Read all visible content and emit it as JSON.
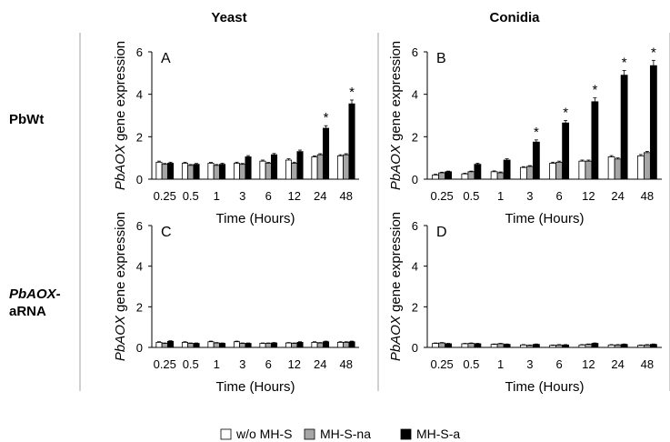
{
  "figure": {
    "col_titles": [
      "Yeast",
      "Conidia"
    ],
    "row_titles": [
      {
        "line1": "PbWt",
        "line1_italic": false,
        "line2": ""
      },
      {
        "line1": "PbAOX-",
        "line1_italic": true,
        "line2": "aRNA"
      }
    ],
    "ylabel_italic": "PbAOX",
    "ylabel_rest": " gene expression",
    "xlabel": "Time (Hours)"
  },
  "chart_data": [
    {
      "panel": "A",
      "type": "bar",
      "categories": [
        "0.25",
        "0.5",
        "1",
        "3",
        "6",
        "12",
        "24",
        "48"
      ],
      "ylim": [
        0,
        6
      ],
      "yticks": [
        0,
        2,
        4,
        6
      ],
      "series": [
        {
          "name": "w/o MH-S",
          "values": [
            0.8,
            0.75,
            0.75,
            0.75,
            0.85,
            0.9,
            1.05,
            1.1
          ],
          "errors": [
            0.05,
            0.04,
            0.04,
            0.05,
            0.05,
            0.06,
            0.05,
            0.05
          ]
        },
        {
          "name": "MH-S-na",
          "values": [
            0.7,
            0.65,
            0.65,
            0.7,
            0.75,
            0.75,
            1.15,
            1.15
          ],
          "errors": [
            0.04,
            0.04,
            0.04,
            0.04,
            0.04,
            0.05,
            0.05,
            0.05
          ]
        },
        {
          "name": "MH-S-a",
          "values": [
            0.75,
            0.7,
            0.7,
            1.05,
            1.15,
            1.3,
            2.4,
            3.55
          ],
          "errors": [
            0.05,
            0.04,
            0.05,
            0.06,
            0.06,
            0.07,
            0.12,
            0.18
          ]
        }
      ],
      "significant": [
        false,
        false,
        false,
        false,
        false,
        false,
        true,
        true
      ]
    },
    {
      "panel": "B",
      "type": "bar",
      "categories": [
        "0.25",
        "0.5",
        "1",
        "3",
        "6",
        "12",
        "24",
        "48"
      ],
      "ylim": [
        0,
        6
      ],
      "yticks": [
        0,
        2,
        4,
        6
      ],
      "series": [
        {
          "name": "w/o MH-S",
          "values": [
            0.2,
            0.25,
            0.35,
            0.55,
            0.75,
            0.85,
            1.05,
            1.1
          ],
          "errors": [
            0.03,
            0.03,
            0.04,
            0.04,
            0.05,
            0.05,
            0.06,
            0.06
          ]
        },
        {
          "name": "MH-S-na",
          "values": [
            0.3,
            0.35,
            0.3,
            0.6,
            0.8,
            0.85,
            0.95,
            1.25
          ],
          "errors": [
            0.03,
            0.03,
            0.04,
            0.04,
            0.05,
            0.05,
            0.05,
            0.06
          ]
        },
        {
          "name": "MH-S-a",
          "values": [
            0.35,
            0.7,
            0.9,
            1.75,
            2.65,
            3.65,
            4.9,
            5.35
          ],
          "errors": [
            0.03,
            0.05,
            0.06,
            0.1,
            0.12,
            0.18,
            0.22,
            0.25
          ]
        }
      ],
      "significant": [
        false,
        false,
        false,
        true,
        true,
        true,
        true,
        true
      ]
    },
    {
      "panel": "C",
      "type": "bar",
      "categories": [
        "0.25",
        "0.5",
        "1",
        "3",
        "6",
        "12",
        "24",
        "48"
      ],
      "ylim": [
        0,
        6
      ],
      "yticks": [
        0,
        2,
        4,
        6
      ],
      "series": [
        {
          "name": "w/o MH-S",
          "values": [
            0.25,
            0.25,
            0.28,
            0.28,
            0.2,
            0.22,
            0.25,
            0.25
          ],
          "errors": [
            0.03,
            0.03,
            0.03,
            0.03,
            0.02,
            0.02,
            0.03,
            0.03
          ]
        },
        {
          "name": "MH-S-na",
          "values": [
            0.2,
            0.2,
            0.22,
            0.2,
            0.2,
            0.2,
            0.22,
            0.25
          ],
          "errors": [
            0.02,
            0.02,
            0.02,
            0.02,
            0.02,
            0.02,
            0.02,
            0.03
          ]
        },
        {
          "name": "MH-S-a",
          "values": [
            0.3,
            0.2,
            0.2,
            0.2,
            0.22,
            0.25,
            0.28,
            0.28
          ],
          "errors": [
            0.03,
            0.02,
            0.02,
            0.02,
            0.02,
            0.03,
            0.03,
            0.03
          ]
        }
      ],
      "significant": [
        false,
        false,
        false,
        false,
        false,
        false,
        false,
        false
      ]
    },
    {
      "panel": "D",
      "type": "bar",
      "categories": [
        "0.25",
        "0.5",
        "1",
        "3",
        "6",
        "12",
        "24",
        "48"
      ],
      "ylim": [
        0,
        6
      ],
      "yticks": [
        0,
        2,
        4,
        6
      ],
      "series": [
        {
          "name": "w/o MH-S",
          "values": [
            0.2,
            0.18,
            0.15,
            0.12,
            0.1,
            0.12,
            0.12,
            0.1
          ],
          "errors": [
            0.02,
            0.02,
            0.02,
            0.02,
            0.02,
            0.02,
            0.02,
            0.02
          ]
        },
        {
          "name": "MH-S-na",
          "values": [
            0.22,
            0.2,
            0.18,
            0.1,
            0.12,
            0.15,
            0.12,
            0.12
          ],
          "errors": [
            0.02,
            0.02,
            0.02,
            0.02,
            0.02,
            0.02,
            0.02,
            0.02
          ]
        },
        {
          "name": "MH-S-a",
          "values": [
            0.18,
            0.18,
            0.15,
            0.15,
            0.12,
            0.2,
            0.15,
            0.15
          ],
          "errors": [
            0.02,
            0.02,
            0.02,
            0.02,
            0.02,
            0.02,
            0.02,
            0.02
          ]
        }
      ],
      "significant": [
        false,
        false,
        false,
        false,
        false,
        false,
        false,
        false
      ]
    }
  ],
  "legend": {
    "placement": "bottom-center",
    "items": [
      {
        "label": "w/o MH-S",
        "color": "#ffffff"
      },
      {
        "label": "MH-S-na",
        "color": "#a6a6a6"
      },
      {
        "label": "MH-S-a",
        "color": "#000000"
      }
    ]
  },
  "colors": {
    "w_o": "#ffffff",
    "na": "#a6a6a6",
    "a": "#000000",
    "divider": "#999999"
  }
}
